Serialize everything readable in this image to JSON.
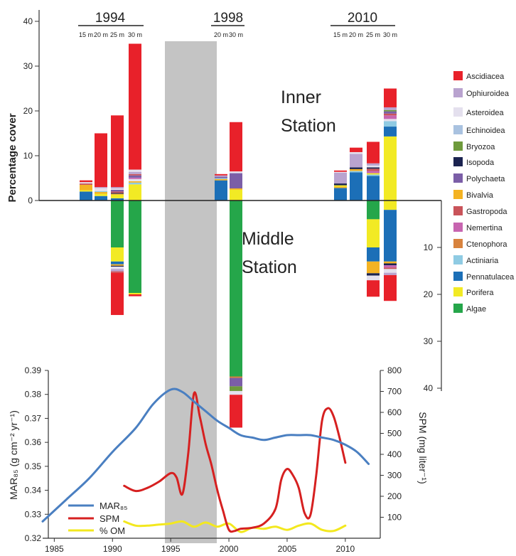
{
  "chart_data": [
    {
      "type": "bar",
      "subtype": "diverging-stacked-bar",
      "ylabel": "Percentage cover",
      "ylim_inner": [
        0,
        40
      ],
      "ylim_middle": [
        0,
        40
      ],
      "y_ticks_inner": [
        "0",
        "10",
        "20",
        "30",
        "40"
      ],
      "y_ticks_middle": [
        "10",
        "20",
        "30",
        "40"
      ],
      "panel_labels": {
        "inner": [
          "Inner",
          "Station"
        ],
        "middle": [
          "Middle",
          "Station"
        ]
      },
      "years": [
        {
          "label": "1994",
          "depths": [
            "15 m",
            "20 m",
            "25 m",
            "30 m"
          ]
        },
        {
          "label": "1998",
          "depths": [
            "20 m",
            "30 m"
          ]
        },
        {
          "label": "2010",
          "depths": [
            "15 m",
            "20 m",
            "25 m",
            "30 m"
          ]
        }
      ],
      "legend": [
        {
          "name": "Ascidiacea",
          "color": "#e8212a"
        },
        {
          "name": "Ophiuroidea",
          "color": "#b9a3cf"
        },
        {
          "name": "Asteroidea",
          "color": "#e4e0ee"
        },
        {
          "name": "Echinoidea",
          "color": "#a9c2e0"
        },
        {
          "name": "Bryozoa",
          "color": "#6e9a3c"
        },
        {
          "name": "Isopoda",
          "color": "#1b2350"
        },
        {
          "name": "Polychaeta",
          "color": "#7b5ea7"
        },
        {
          "name": "Bivalvia",
          "color": "#f4b323"
        },
        {
          "name": "Gastropoda",
          "color": "#c9545a"
        },
        {
          "name": "Nemertina",
          "color": "#c765b0"
        },
        {
          "name": "Ctenophora",
          "color": "#d8833e"
        },
        {
          "name": "Actiniaria",
          "color": "#8fcbe3"
        },
        {
          "name": "Pennatulacea",
          "color": "#1c6fb7"
        },
        {
          "name": "Porifera",
          "color": "#f2ea24"
        },
        {
          "name": "Algae",
          "color": "#25a64a"
        }
      ],
      "bars": [
        {
          "group": "1994",
          "depth": "15 m",
          "inner": [
            [
              "Pennatulacea",
              2.0
            ],
            [
              "Porifera",
              0.3
            ],
            [
              "Bivalvia",
              1.2
            ],
            [
              "Gastropoda",
              0.3
            ],
            [
              "Asteroidea",
              0.3
            ],
            [
              "Ascidiacea",
              0.4
            ]
          ],
          "middle": []
        },
        {
          "group": "1994",
          "depth": "20 m",
          "inner": [
            [
              "Pennatulacea",
              1.0
            ],
            [
              "Porifera",
              0.5
            ],
            [
              "Bivalvia",
              0.4
            ],
            [
              "Actiniaria",
              0.2
            ],
            [
              "Asteroidea",
              0.7
            ],
            [
              "Ophiuroidea",
              0.2
            ],
            [
              "Ascidiacea",
              12.0
            ]
          ],
          "middle": []
        },
        {
          "group": "1994",
          "depth": "25 m",
          "inner": [
            [
              "Pennatulacea",
              0.5
            ],
            [
              "Porifera",
              0.8
            ],
            [
              "Bivalvia",
              0.2
            ],
            [
              "Isopoda",
              0.2
            ],
            [
              "Gastropoda",
              0.3
            ],
            [
              "Polychaeta",
              0.4
            ],
            [
              "Asteroidea",
              0.3
            ],
            [
              "Ophiuroidea",
              0.3
            ],
            [
              "Ascidiacea",
              16.0
            ]
          ],
          "middle": [
            [
              "Algae",
              10.0
            ],
            [
              "Porifera",
              3.0
            ],
            [
              "Pennatulacea",
              0.6
            ],
            [
              "Bivalvia",
              0.3
            ],
            [
              "Isopoda",
              0.2
            ],
            [
              "Asteroidea",
              0.5
            ],
            [
              "Ophiuroidea",
              0.5
            ],
            [
              "Gastropoda",
              0.3
            ],
            [
              "Ascidiacea",
              9.0
            ]
          ]
        },
        {
          "group": "1994",
          "depth": "30 m",
          "inner": [
            [
              "Porifera",
              3.6
            ],
            [
              "Actiniaria",
              0.4
            ],
            [
              "Bivalvia",
              0.3
            ],
            [
              "Asteroidea",
              0.5
            ],
            [
              "Nemertina",
              0.3
            ],
            [
              "Polychaeta",
              0.5
            ],
            [
              "Gastropoda",
              0.3
            ],
            [
              "Ophiuroidea",
              0.5
            ],
            [
              "Asteroidea",
              0.5
            ],
            [
              "Ascidiacea",
              28.1
            ]
          ],
          "middle": [
            [
              "Algae",
              19.7
            ],
            [
              "Porifera",
              0.3
            ],
            [
              "Ascidiacea",
              0.4
            ]
          ]
        },
        {
          "group": "1998",
          "depth": "20 m",
          "inner": [
            [
              "Pennatulacea",
              4.5
            ],
            [
              "Bivalvia",
              0.3
            ],
            [
              "Actiniaria",
              0.2
            ],
            [
              "Polychaeta",
              0.3
            ],
            [
              "Ophiuroidea",
              0.3
            ],
            [
              "Ascidiacea",
              0.3
            ]
          ],
          "middle": []
        },
        {
          "group": "1998",
          "depth": "30 m",
          "inner": [
            [
              "Porifera",
              2.4
            ],
            [
              "Bivalvia",
              0.3
            ],
            [
              "Polychaeta",
              3.4
            ],
            [
              "Asteroidea",
              0.4
            ],
            [
              "Ascidiacea",
              11.0
            ]
          ],
          "middle": [
            [
              "Algae",
              37.5
            ],
            [
              "Ctenophora",
              0.3
            ],
            [
              "Polychaeta",
              1.8
            ],
            [
              "Bryozoa",
              1.0
            ],
            [
              "Asteroidea",
              0.8
            ],
            [
              "Ascidiacea",
              7.0
            ]
          ]
        },
        {
          "group": "2010",
          "depth": "15 m",
          "inner": [
            [
              "Pennatulacea",
              2.8
            ],
            [
              "Bivalvia",
              0.3
            ],
            [
              "Porifera",
              0.3
            ],
            [
              "Isopoda",
              0.4
            ],
            [
              "Ophiuroidea",
              2.4
            ],
            [
              "Asteroidea",
              0.2
            ],
            [
              "Ascidiacea",
              0.3
            ]
          ],
          "middle": []
        },
        {
          "group": "2010",
          "depth": "20 m",
          "inner": [
            [
              "Pennatulacea",
              6.3
            ],
            [
              "Actiniaria",
              0.3
            ],
            [
              "Bivalvia",
              0.4
            ],
            [
              "Isopoda",
              0.4
            ],
            [
              "Ophiuroidea",
              3.0
            ],
            [
              "Asteroidea",
              0.4
            ],
            [
              "Ascidiacea",
              1.0
            ]
          ],
          "middle": []
        },
        {
          "group": "2010",
          "depth": "25 m",
          "inner": [
            [
              "Pennatulacea",
              5.5
            ],
            [
              "Actiniaria",
              0.3
            ],
            [
              "Porifera",
              0.3
            ],
            [
              "Nemertina",
              0.5
            ],
            [
              "Gastropoda",
              0.5
            ],
            [
              "Isopoda",
              0.3
            ],
            [
              "Asteroidea",
              0.4
            ],
            [
              "Ophiuroidea",
              0.5
            ],
            [
              "Ascidiacea",
              4.8
            ]
          ],
          "middle": [
            [
              "Algae",
              4.0
            ],
            [
              "Porifera",
              6.0
            ],
            [
              "Pennatulacea",
              3.0
            ],
            [
              "Bivalvia",
              2.5
            ],
            [
              "Isopoda",
              0.5
            ],
            [
              "Asteroidea",
              1.0
            ],
            [
              "Ascidiacea",
              3.5
            ]
          ]
        },
        {
          "group": "2010",
          "depth": "30 m",
          "inner": [
            [
              "Porifera",
              14.3
            ],
            [
              "Pennatulacea",
              2.2
            ],
            [
              "Actiniaria",
              1.2
            ],
            [
              "Asteroidea",
              0.5
            ],
            [
              "Nemertina",
              0.8
            ],
            [
              "Gastropoda",
              0.4
            ],
            [
              "Polychaeta",
              0.5
            ],
            [
              "Bryozoa",
              0.3
            ],
            [
              "Ophiuroidea",
              0.6
            ],
            [
              "Ascidiacea",
              4.2
            ]
          ],
          "middle": [
            [
              "Porifera",
              2.0
            ],
            [
              "Pennatulacea",
              11.0
            ],
            [
              "Bivalvia",
              0.4
            ],
            [
              "Isopoda",
              0.4
            ],
            [
              "Nemertina",
              0.5
            ],
            [
              "Gastropoda",
              0.3
            ],
            [
              "Asteroidea",
              0.8
            ],
            [
              "Ophiuroidea",
              0.5
            ],
            [
              "Ascidiacea",
              5.5
            ]
          ]
        }
      ],
      "grid": false,
      "legend_placement": "right"
    },
    {
      "type": "line",
      "x_range": [
        1984,
        2013
      ],
      "x_ticks": [
        "1985",
        "1990",
        "1995",
        "2000",
        "2005",
        "2010"
      ],
      "ylabel": "MAR₈₅ (g cm⁻² yr⁻¹)",
      "ylabel_right": "SPM (mg liter⁻¹)",
      "ylim": [
        0.32,
        0.39
      ],
      "ylim_right": [
        0,
        800
      ],
      "y_ticks": [
        "0.32",
        "0.33",
        "0.34",
        "0.35",
        "0.36",
        "0.37",
        "0.38",
        "0.39"
      ],
      "y_ticks_right": [
        "100",
        "200",
        "300",
        "400",
        "500",
        "600",
        "700",
        "800"
      ],
      "shaded_period": [
        1993.6,
        1997.8
      ],
      "series": [
        {
          "name": "MAR₈₅",
          "color": "#4a7fc1",
          "axis": "left",
          "x": [
            1984,
            1986,
            1988,
            1990,
            1992,
            1993.5,
            1995,
            1996,
            1997,
            1998,
            1999,
            2000,
            2001,
            2002,
            2003,
            2004,
            2005,
            2006,
            2007,
            2008,
            2009,
            2010,
            2011,
            2012
          ],
          "y": [
            0.327,
            0.336,
            0.345,
            0.356,
            0.366,
            0.376,
            0.382,
            0.381,
            0.377,
            0.373,
            0.369,
            0.366,
            0.363,
            0.362,
            0.361,
            0.362,
            0.363,
            0.363,
            0.363,
            0.362,
            0.361,
            0.359,
            0.356,
            0.351
          ]
        },
        {
          "name": "SPM",
          "color": "#d62020",
          "axis": "right",
          "x": [
            1991,
            1992,
            1993,
            1994,
            1995,
            1995.5,
            1996,
            1996.5,
            1997,
            1997.5,
            1998,
            1998.5,
            1999,
            1999.5,
            2000,
            2000.5,
            2001,
            2002,
            2003,
            2004,
            2004.5,
            2005,
            2005.5,
            2006,
            2006.5,
            2007,
            2007.5,
            2008,
            2008.5,
            2009,
            2009.5,
            2010
          ],
          "y": [
            250,
            225,
            240,
            270,
            310,
            290,
            210,
            400,
            690,
            580,
            450,
            350,
            230,
            130,
            40,
            35,
            45,
            50,
            70,
            140,
            280,
            330,
            300,
            240,
            120,
            110,
            300,
            560,
            620,
            580,
            480,
            360
          ]
        },
        {
          "name": "% OM",
          "color": "#f3e81e",
          "axis": "right",
          "x": [
            1991,
            1992,
            1993,
            1994,
            1995,
            1996,
            1997,
            1998,
            1999,
            2000,
            2001,
            2002,
            2003,
            2004,
            2005,
            2006,
            2007,
            2008,
            2009,
            2010
          ],
          "y": [
            80,
            60,
            60,
            65,
            70,
            80,
            55,
            75,
            55,
            70,
            30,
            50,
            45,
            55,
            40,
            60,
            70,
            40,
            35,
            60
          ]
        }
      ],
      "grid": false,
      "legend_placement": "bottom-left"
    }
  ]
}
